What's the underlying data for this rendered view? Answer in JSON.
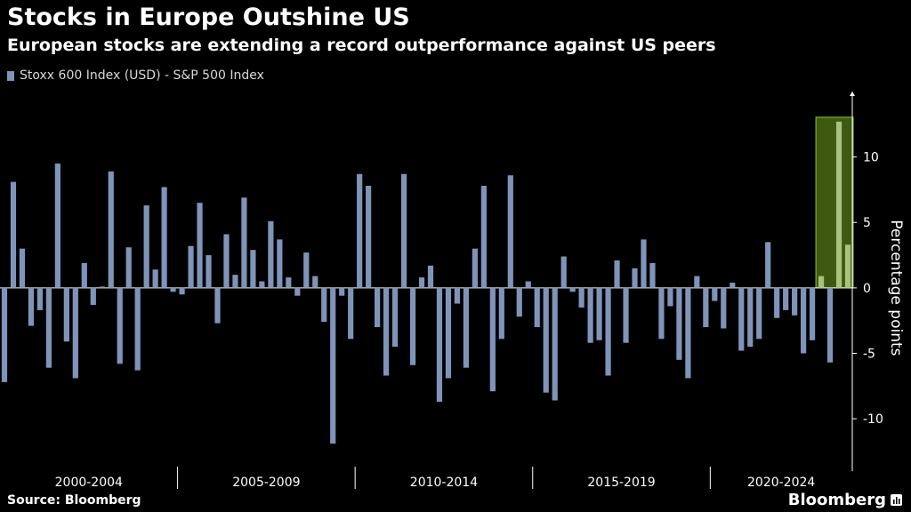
{
  "header": {
    "title": "Stocks in Europe Outshine US",
    "subtitle": "European stocks are extending a record outperformance against US peers"
  },
  "legend": {
    "label": "Stoxx 600 Index (USD) - S&P 500 Index"
  },
  "footer": {
    "source": "Source: Bloomberg",
    "brand": "Bloomberg"
  },
  "colors": {
    "bar": "#7f94b8",
    "highlight_fill": "#3d5a10",
    "highlight_stroke": "#8cc63f",
    "highlight_bar": "#a7c27e"
  },
  "chart_data": {
    "type": "bar",
    "title": "Stocks in Europe Outshine US",
    "ylabel": "Percentage points",
    "ylim": [
      -14,
      15
    ],
    "yticks": [
      -10,
      -5,
      0,
      5,
      10
    ],
    "ytick_labels": [
      "-10",
      "-5",
      "0",
      "5",
      "10"
    ],
    "periods": [
      "2000-2004",
      "2005-2009",
      "2010-2014",
      "2015-2019",
      "2020-2024"
    ],
    "quarters_per_period": 20,
    "series": [
      {
        "name": "Stoxx 600 Index (USD) - S&P 500 Index",
        "values": [
          -7.2,
          8.1,
          3.0,
          -2.9,
          -1.7,
          -6.1,
          9.5,
          -4.1,
          -6.9,
          1.9,
          -1.3,
          0.1,
          8.9,
          -5.8,
          3.1,
          -6.3,
          6.3,
          1.4,
          7.7,
          -0.3,
          -0.5,
          3.2,
          6.5,
          2.5,
          -2.7,
          4.1,
          1.0,
          6.9,
          2.9,
          0.5,
          5.1,
          3.7,
          0.8,
          -0.6,
          2.7,
          0.9,
          -2.6,
          -11.9,
          -0.6,
          -3.9,
          8.7,
          7.8,
          -3.0,
          -6.7,
          -4.5,
          8.7,
          -5.9,
          0.8,
          1.7,
          -8.7,
          -6.9,
          -1.2,
          -6.1,
          3.0,
          7.8,
          -7.9,
          -3.9,
          8.6,
          -2.2,
          0.5,
          -3.0,
          -8.0,
          -8.6,
          2.4,
          -0.3,
          -1.5,
          -4.2,
          -4.0,
          -6.7,
          2.1,
          -4.2,
          1.5,
          3.7,
          1.9,
          -3.9,
          -1.4,
          -5.5,
          -6.9,
          0.9,
          -3.0,
          -1.0,
          -3.1,
          0.4,
          -4.8,
          -4.5,
          -3.9,
          3.5,
          -2.3,
          -1.7,
          -2.1,
          -5.0,
          -4.0,
          0.9,
          -5.7,
          12.7,
          3.3
        ]
      }
    ],
    "highlight": {
      "from_index": 92,
      "to_index": 95
    }
  }
}
